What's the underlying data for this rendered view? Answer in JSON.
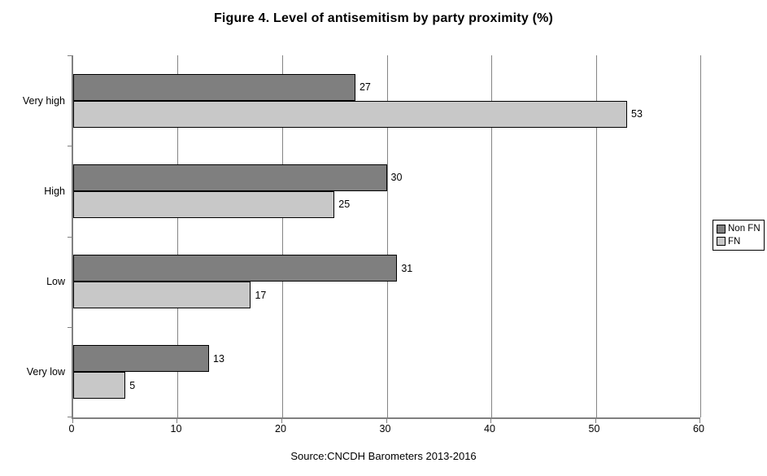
{
  "title": "Figure 4. Level of antisemitism by party proximity (%)",
  "source_note": "Source:CNCDH Barometers 2013-2016",
  "chart_data": {
    "type": "bar",
    "orientation": "horizontal",
    "title": "Figure 4. Level of antisemitism by party proximity (%)",
    "categories": [
      "Very high",
      "High",
      "Low",
      "Very low"
    ],
    "series": [
      {
        "name": "Non FN",
        "color": "#7F7F7F",
        "values": [
          27,
          30,
          31,
          13
        ]
      },
      {
        "name": "FN",
        "color": "#C8C8C8",
        "values": [
          53,
          25,
          17,
          5
        ]
      }
    ],
    "xlim": [
      0,
      60
    ],
    "x_ticks": [
      0,
      10,
      20,
      30,
      40,
      50,
      60
    ],
    "grid": "vertical",
    "data_labels": true,
    "legend_position": "right",
    "annotation": "Source:CNCDH Barometers 2013-2016",
    "bar_border_color": "#000000",
    "axis_color": "#808080",
    "gridline_color": "#848484",
    "background_color": "#FFFFFF"
  }
}
